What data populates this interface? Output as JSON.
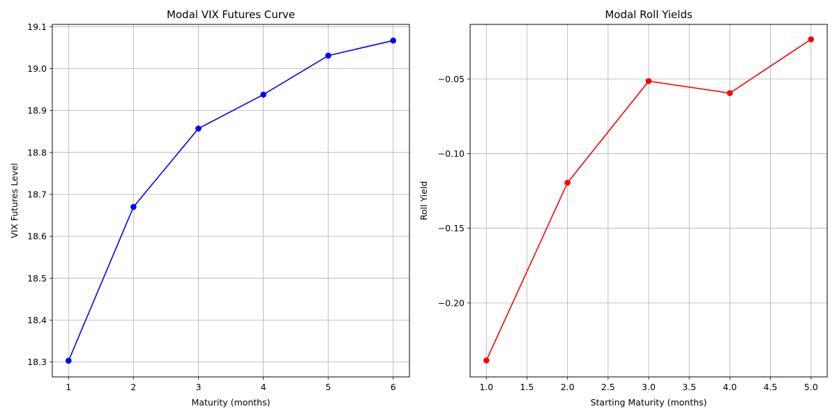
{
  "chart_data": [
    {
      "type": "line",
      "title": "Modal VIX Futures Curve",
      "xlabel": "Maturity (months)",
      "ylabel": "VIX Futures Level",
      "x": [
        1,
        2,
        3,
        4,
        5,
        6
      ],
      "series": [
        {
          "values": [
            18.303,
            18.67,
            18.857,
            18.938,
            19.031,
            19.067
          ],
          "color": "#0000ff",
          "marker": "circle"
        }
      ],
      "xlim": [
        0.75,
        6.25
      ],
      "ylim": [
        18.2645,
        19.1055
      ],
      "xticks": [
        1,
        2,
        3,
        4,
        5,
        6
      ],
      "xtick_labels": [
        "1",
        "2",
        "3",
        "4",
        "5",
        "6"
      ],
      "yticks": [
        18.3,
        18.4,
        18.5,
        18.6,
        18.7,
        18.8,
        18.9,
        19.0,
        19.1
      ],
      "ytick_labels": [
        "18.3",
        "18.4",
        "18.5",
        "18.6",
        "18.7",
        "18.8",
        "18.9",
        "19.0",
        "19.1"
      ],
      "grid": true
    },
    {
      "type": "line",
      "title": "Modal Roll Yields",
      "xlabel": "Starting Maturity (months)",
      "ylabel": "Roll Yield",
      "x": [
        1.0,
        2.0,
        3.0,
        4.0,
        5.0
      ],
      "series": [
        {
          "values": [
            -0.2385,
            -0.1195,
            -0.0515,
            -0.0595,
            -0.0235
          ],
          "color": "#ff0000",
          "marker": "circle"
        }
      ],
      "xlim": [
        0.8,
        5.2
      ],
      "ylim": [
        -0.2495,
        -0.0135
      ],
      "xticks": [
        1.0,
        1.5,
        2.0,
        2.5,
        3.0,
        3.5,
        4.0,
        4.5,
        5.0
      ],
      "xtick_labels": [
        "1.0",
        "1.5",
        "2.0",
        "2.5",
        "3.0",
        "3.5",
        "4.0",
        "4.5",
        "5.0"
      ],
      "yticks": [
        -0.2,
        -0.15,
        -0.1,
        -0.05
      ],
      "ytick_labels": [
        "−0.20",
        "−0.15",
        "−0.10",
        "−0.05"
      ],
      "grid": true
    }
  ]
}
